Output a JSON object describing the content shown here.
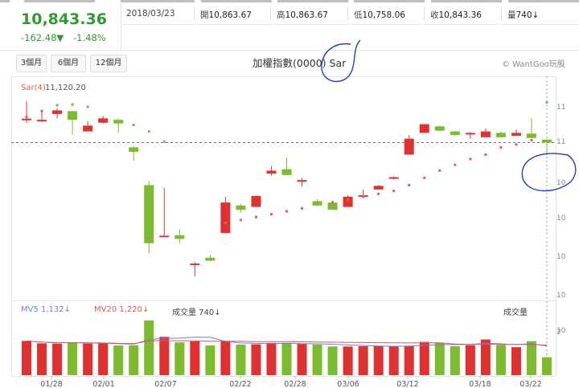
{
  "quote": {
    "price": "10,843.36",
    "change": "-162.48▼",
    "change_pct": "-1.48%",
    "date": "2018/03/23",
    "open": {
      "label": "開",
      "value": "10,863.67"
    },
    "high": {
      "label": "高",
      "value": "10,863.67"
    },
    "low": {
      "label": "低",
      "value": "10,758.06"
    },
    "close": {
      "label": "收",
      "value": "10,843.36"
    },
    "volume": {
      "label": "量",
      "value": "740↓"
    }
  },
  "range_buttons": [
    "3個月",
    "6個月",
    "12個月"
  ],
  "chart_title": "加權指數(0000) Sar",
  "brand": "© WantGoo玩股",
  "indicator": {
    "name": "Sar(4)",
    "value": "11,120.20"
  },
  "volume_panel": {
    "mv5": "MV5 1,132↓",
    "mv20": "MV20 1,220↓",
    "vol": "成交量 740↓",
    "right_label": "成交量",
    "right_tick": "2"
  },
  "colors": {
    "up": "#e03131",
    "down": "#7cba2f",
    "sar_up": "#e35d5d",
    "sar_down": "#5cbf58",
    "mv5": "#6b7fd8",
    "mv20": "#d45a5a"
  },
  "chart_data": {
    "type": "candlestick",
    "series": [
      {
        "name": "candles",
        "values": [
          [
            11000,
            11008,
            11130,
            10980
          ],
          [
            11000,
            11000,
            11070,
            10985
          ],
          [
            11040,
            11065,
            11080,
            11010
          ],
          [
            11060,
            11000,
            11040,
            10900
          ],
          [
            10920,
            10960,
            10990,
            10920
          ],
          [
            10980,
            11010,
            11025,
            10975
          ],
          [
            11000,
            10975,
            11010,
            10910
          ],
          [
            10810,
            10780,
            10820,
            10720
          ],
          [
            10550,
            10150,
            10580,
            10080
          ],
          [
            10200,
            10202,
            10530,
            10195
          ],
          [
            10205,
            10180,
            10245,
            10150
          ],
          [
            10010,
            10010,
            10020,
            9920
          ],
          [
            10050,
            10030,
            10070,
            10025
          ],
          [
            10220,
            10430,
            10470,
            10220
          ],
          [
            10410,
            10380,
            10420,
            10360
          ],
          [
            10400,
            10475,
            10480,
            10400
          ],
          [
            10630,
            10650,
            10680,
            10615
          ],
          [
            10660,
            10620,
            10740,
            10620
          ],
          [
            10585,
            10585,
            10600,
            10540
          ],
          [
            10440,
            10410,
            10455,
            10405
          ],
          [
            10430,
            10380,
            10445,
            10380
          ],
          [
            10400,
            10470,
            10480,
            10400
          ],
          [
            10480,
            10480,
            10520,
            10480
          ],
          [
            10520,
            10545,
            10550,
            10520
          ],
          [
            10595,
            10605,
            10610,
            10590
          ],
          [
            10760,
            10870,
            10895,
            10760
          ],
          [
            10910,
            10970,
            10970,
            10910
          ],
          [
            10955,
            10925,
            10960,
            10925
          ],
          [
            10920,
            10895,
            10925,
            10890
          ],
          [
            10910,
            10910,
            10915,
            10870
          ],
          [
            10880,
            10920,
            10940,
            10880
          ],
          [
            10910,
            10880,
            10920,
            10880
          ],
          [
            10890,
            10910,
            10935,
            10890
          ],
          [
            10905,
            10875,
            11010,
            10875
          ],
          [
            10863.67,
            10843.36,
            10863.67,
            10758.06
          ]
        ]
      },
      {
        "name": "Sar(4)",
        "values": [
          11020,
          11060,
          11100,
          11105,
          11090,
          null,
          null,
          10965,
          10920,
          10850,
          null,
          null,
          null,
          10290,
          10310,
          10330,
          10350,
          10370,
          10390,
          null,
          10430,
          10450,
          10470,
          10490,
          10510,
          10550,
          10600,
          10650,
          10690,
          10730,
          10760,
          10810,
          10830,
          10860,
          11120.2
        ]
      }
    ],
    "volume": [
      1420,
      1320,
      1310,
      1340,
      1310,
      1320,
      1230,
      1240,
      2270,
      1590,
      1360,
      1400,
      1230,
      1420,
      1270,
      1280,
      1340,
      1320,
      1300,
      1270,
      1190,
      1190,
      1200,
      1200,
      1200,
      1220,
      1380,
      1330,
      1200,
      1240,
      1480,
      1250,
      1160,
      1410,
      740
    ],
    "x_ticks": [
      "01/28",
      "02/01",
      "02/07",
      "02/22",
      "02/28",
      "03/06",
      "03/12",
      "03/18",
      "03/22"
    ],
    "y_ticks_right": [
      "11",
      "11",
      "10",
      "10",
      "10",
      "10",
      "10"
    ]
  }
}
